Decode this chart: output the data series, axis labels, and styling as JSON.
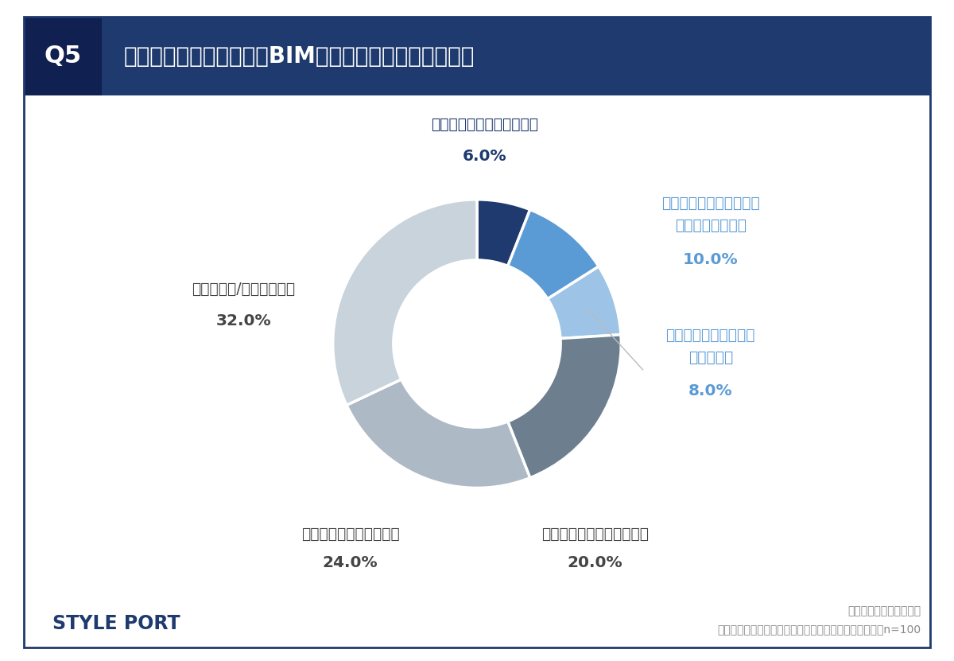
{
  "title_q": "Q5",
  "title_text": "あなたのお勤め先では、BIMの活用が進んでいますか。",
  "segments": [
    {
      "label": "全社的に活用が進んでいる",
      "value": 6.0,
      "color": "#1e3a6e"
    },
    {
      "label": "プロジェクトによっては\n活用が進んでいる",
      "value": 10.0,
      "color": "#5b9bd5"
    },
    {
      "label": "一部の工程では活用が\n進んでいる",
      "value": 8.0,
      "color": "#9dc3e6"
    },
    {
      "label": "あまり活用が進んでいない",
      "value": 20.0,
      "color": "#6d7f8f"
    },
    {
      "label": "全く活用が進んでいない",
      "value": 24.0,
      "color": "#adb9c4"
    },
    {
      "label": "わからない/答えられない",
      "value": 32.0,
      "color": "#c9d3db"
    }
  ],
  "label_colors": [
    "#1e3a6e",
    "#5b9bd5",
    "#5b9bd5",
    "#444444",
    "#444444",
    "#444444"
  ],
  "pct_colors": [
    "#1e3a6e",
    "#5b9bd5",
    "#5b9bd5",
    "#444444",
    "#444444",
    "#444444"
  ],
  "header_bg": "#1e3a6e",
  "header_text_color": "#ffffff",
  "border_color": "#1e3a6e",
  "bg_color": "#ffffff",
  "footer_left": "STYLE PORT",
  "footer_right1": "株式会社スタイルポート",
  "footer_right2": "デベロッパーの「デジタルツイン」に関する意識調査　n=100"
}
